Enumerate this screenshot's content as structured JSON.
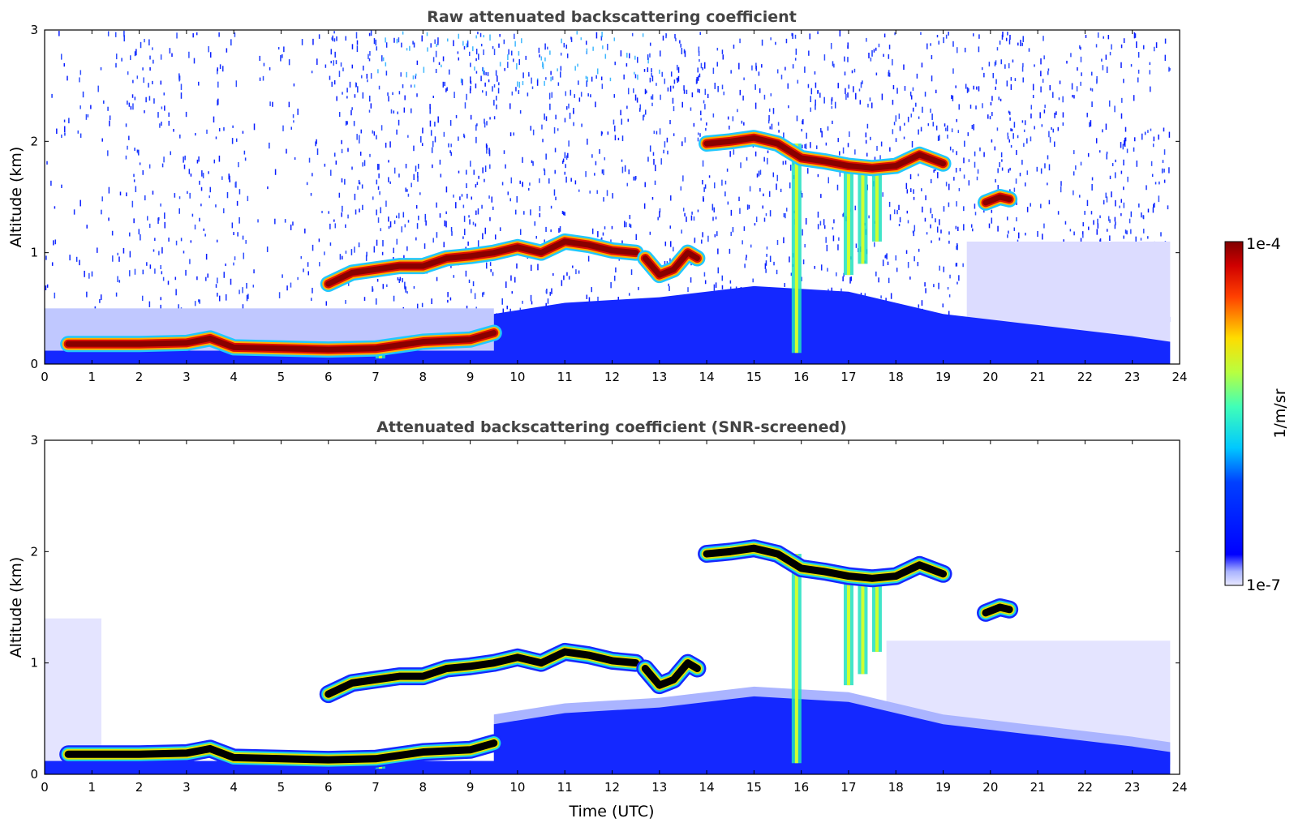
{
  "chart_data": [
    {
      "type": "heatmap",
      "title": "Raw attenuated backscattering coefficient",
      "xlabel": "",
      "ylabel": "Altitude (km)",
      "xlim": [
        0,
        24
      ],
      "ylim": [
        0,
        3
      ],
      "xticks": [
        "0",
        "1",
        "2",
        "3",
        "4",
        "5",
        "6",
        "7",
        "8",
        "9",
        "10",
        "11",
        "12",
        "13",
        "14",
        "15",
        "16",
        "17",
        "18",
        "19",
        "20",
        "21",
        "22",
        "23",
        "24"
      ],
      "yticks": [
        "0",
        "1",
        "2",
        "3"
      ],
      "screened": false,
      "cloud_layers": [
        {
          "t": [
            0.5,
            1,
            2,
            3,
            3.5,
            4,
            5,
            6,
            7,
            8,
            9,
            9.5
          ],
          "alt": [
            0.18,
            0.18,
            0.18,
            0.19,
            0.23,
            0.15,
            0.14,
            0.13,
            0.14,
            0.2,
            0.22,
            0.28
          ]
        },
        {
          "t": [
            6,
            6.5,
            7,
            7.5,
            8,
            8.5,
            9,
            9.5,
            10,
            10.5,
            11,
            11.5,
            12,
            12.5
          ],
          "alt": [
            0.72,
            0.82,
            0.85,
            0.88,
            0.88,
            0.95,
            0.97,
            1.0,
            1.05,
            1.0,
            1.1,
            1.07,
            1.02,
            1.0
          ]
        },
        {
          "t": [
            12.7,
            13,
            13.3,
            13.6,
            13.8
          ],
          "alt": [
            0.95,
            0.8,
            0.85,
            1.0,
            0.95
          ]
        },
        {
          "t": [
            14,
            14.5,
            15,
            15.5,
            16,
            16.5,
            17,
            17.5,
            18,
            18.5,
            19
          ],
          "alt": [
            1.98,
            2.0,
            2.03,
            1.98,
            1.85,
            1.82,
            1.78,
            1.76,
            1.78,
            1.88,
            1.8
          ]
        },
        {
          "t": [
            19.9,
            20.2,
            20.4
          ],
          "alt": [
            1.45,
            1.5,
            1.48
          ]
        }
      ],
      "virga": [
        {
          "t": 6.9,
          "base": 0.1
        },
        {
          "t": 7.1,
          "base": 0.05
        },
        {
          "t": 15.9,
          "base": 0.1
        },
        {
          "t": 17.0,
          "base": 0.8
        },
        {
          "t": 17.3,
          "base": 0.9
        },
        {
          "t": 17.6,
          "base": 1.1
        }
      ],
      "boundary_layer": {
        "t": [
          9.5,
          11,
          13,
          15,
          17,
          19,
          21,
          23,
          23.8
        ],
        "top": [
          0.45,
          0.55,
          0.6,
          0.7,
          0.65,
          0.45,
          0.35,
          0.25,
          0.2
        ]
      }
    },
    {
      "type": "heatmap",
      "title": "Attenuated backscattering coefficient (SNR-screened)",
      "xlabel": "Time (UTC)",
      "ylabel": "Altitude (km)",
      "xlim": [
        0,
        24
      ],
      "ylim": [
        0,
        3
      ],
      "xticks": [
        "0",
        "1",
        "2",
        "3",
        "4",
        "5",
        "6",
        "7",
        "8",
        "9",
        "10",
        "11",
        "12",
        "13",
        "14",
        "15",
        "16",
        "17",
        "18",
        "19",
        "20",
        "21",
        "22",
        "23",
        "24"
      ],
      "yticks": [
        "0",
        "1",
        "2",
        "3"
      ],
      "screened": true
    }
  ],
  "colorbar": {
    "label": "1/m/sr",
    "max_label": "1e-4",
    "min_label": "1e-7",
    "scale": "log",
    "range": [
      1e-07,
      0.0001
    ],
    "colormap": "jet"
  }
}
